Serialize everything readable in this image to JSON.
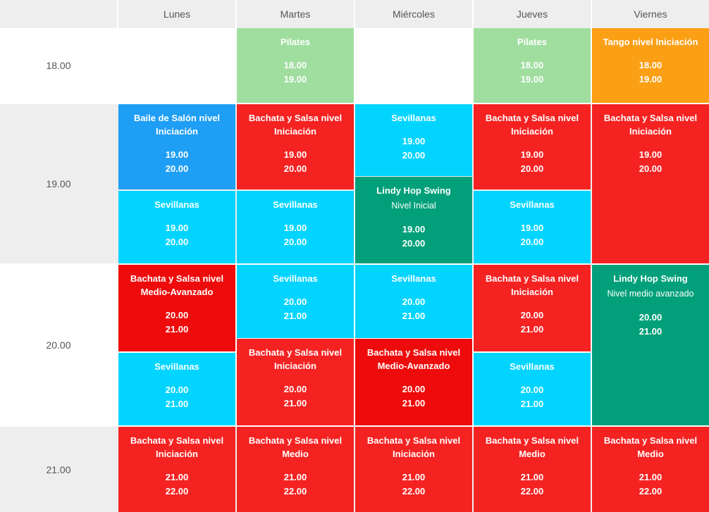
{
  "days": [
    "Lunes",
    "Martes",
    "Miércoles",
    "Jueves",
    "Viernes"
  ],
  "times": [
    "18.00",
    "19.00",
    "20.00",
    "21.00"
  ],
  "colors": {
    "pilates": "#a0dea0",
    "tango": "#fb9f14",
    "salon": "#1e9ef4",
    "bachata": "#f52222",
    "bachata_dark": "#ee0b0b",
    "sevillanas": "#00d4ff",
    "lindy": "#01a07a",
    "header_bg": "#eeeeee",
    "row_alt_bg": "#eeeeee"
  },
  "events": [
    {
      "title": "Pilates",
      "subtitle": "",
      "start": "18.00",
      "end": "19.00"
    },
    {
      "title": "Pilates",
      "subtitle": "",
      "start": "18.00",
      "end": "19.00"
    },
    {
      "title": "Tango nivel Iniciación",
      "subtitle": "",
      "start": "18.00",
      "end": "19.00"
    },
    {
      "title": "Baile de Salón nivel Iniciación",
      "subtitle": "",
      "start": "19.00",
      "end": "20.00"
    },
    {
      "title": "Sevillanas",
      "subtitle": "",
      "start": "19.00",
      "end": "20.00"
    },
    {
      "title": "Bachata y Salsa nivel Iniciación",
      "subtitle": "",
      "start": "19.00",
      "end": "20.00"
    },
    {
      "title": "Sevillanas",
      "subtitle": "",
      "start": "19.00",
      "end": "20.00"
    },
    {
      "title": "Sevillanas",
      "subtitle": "",
      "start": "19.00",
      "end": "20.00"
    },
    {
      "title": "Lindy Hop Swing",
      "subtitle": "Nivel Inicial",
      "start": "19.00",
      "end": "20.00"
    },
    {
      "title": "Bachata y Salsa nivel Iniciación",
      "subtitle": "",
      "start": "19.00",
      "end": "20.00"
    },
    {
      "title": "Sevillanas",
      "subtitle": "",
      "start": "19.00",
      "end": "20.00"
    },
    {
      "title": "Bachata y Salsa nivel Iniciación",
      "subtitle": "",
      "start": "19.00",
      "end": "20.00"
    },
    {
      "title": "Bachata y Salsa nivel Medio-Avanzado",
      "subtitle": "",
      "start": "20.00",
      "end": "21.00"
    },
    {
      "title": "Sevillanas",
      "subtitle": "",
      "start": "20.00",
      "end": "21.00"
    },
    {
      "title": "Sevillanas",
      "subtitle": "",
      "start": "20.00",
      "end": "21.00"
    },
    {
      "title": "Bachata y Salsa nivel Iniciación",
      "subtitle": "",
      "start": "20.00",
      "end": "21.00"
    },
    {
      "title": "Sevillanas",
      "subtitle": "",
      "start": "20.00",
      "end": "21.00"
    },
    {
      "title": "Bachata y Salsa nivel Medio-Avanzado",
      "subtitle": "",
      "start": "20.00",
      "end": "21.00"
    },
    {
      "title": "Bachata y Salsa nivel Iniciación",
      "subtitle": "",
      "start": "20.00",
      "end": "21.00"
    },
    {
      "title": "Sevillanas",
      "subtitle": "",
      "start": "20.00",
      "end": "21.00"
    },
    {
      "title": "Lindy Hop Swing",
      "subtitle": "Nivel medio avanzado",
      "start": "20.00",
      "end": "21.00"
    },
    {
      "title": "Bachata y Salsa nivel Iniciación",
      "subtitle": "",
      "start": "21.00",
      "end": "22.00"
    },
    {
      "title": "Bachata y Salsa nivel Medio",
      "subtitle": "",
      "start": "21.00",
      "end": "22.00"
    },
    {
      "title": "Bachata y Salsa nivel Iniciación",
      "subtitle": "",
      "start": "21.00",
      "end": "22.00"
    },
    {
      "title": "Bachata y Salsa nivel Medio",
      "subtitle": "",
      "start": "21.00",
      "end": "22.00"
    },
    {
      "title": "Bachata y Salsa nivel Medio",
      "subtitle": "",
      "start": "21.00",
      "end": "22.00"
    }
  ]
}
